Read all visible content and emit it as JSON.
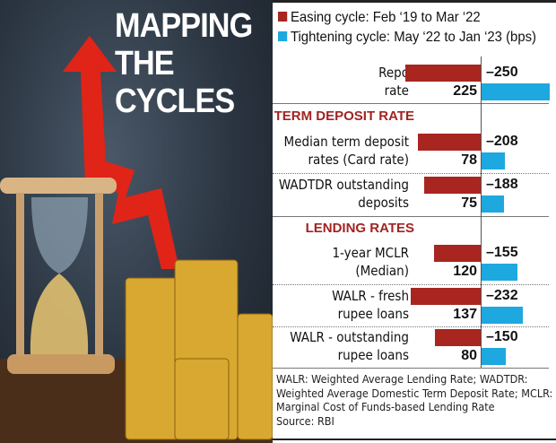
{
  "title": [
    "MAPPING",
    "THE",
    "CYCLES"
  ],
  "chart_data": {
    "type": "bar",
    "orientation": "horizontal",
    "legend": [
      {
        "name": "Easing cycle: Feb ‘19 to Mar ‘22",
        "color": "#a8261f"
      },
      {
        "name": "Tightening cycle: May ‘22 to Jan ‘23 (bps)",
        "color": "#1ea8e0"
      }
    ],
    "sections": [
      {
        "header": "",
        "rows": [
          {
            "label": [
              "Repo",
              "rate"
            ],
            "easing": -250,
            "tightening": 225
          }
        ]
      },
      {
        "header": "TERM DEPOSIT RATE",
        "rows": [
          {
            "label": [
              "Median term deposit",
              "rates (Card rate)"
            ],
            "easing": -208,
            "tightening": 78
          },
          {
            "label": [
              "WADTDR outstanding",
              "deposits"
            ],
            "easing": -188,
            "tightening": 75
          }
        ]
      },
      {
        "header": "LENDING RATES",
        "rows": [
          {
            "label": [
              "1-year MCLR",
              "(Median)"
            ],
            "easing": -155,
            "tightening": 120
          },
          {
            "label": [
              "WALR - fresh",
              "rupee loans"
            ],
            "easing": -232,
            "tightening": 137
          },
          {
            "label": [
              "WALR - outstanding",
              "rupee loans"
            ],
            "easing": -150,
            "tightening": 80
          }
        ]
      }
    ],
    "footnote": [
      "WALR: Weighted Average Lending Rate; WADTDR:",
      "Weighted Average Domestic Term Deposit Rate; MCLR:",
      "Marginal Cost of Funds-based Lending Rate"
    ],
    "source": "Source: RBI"
  }
}
